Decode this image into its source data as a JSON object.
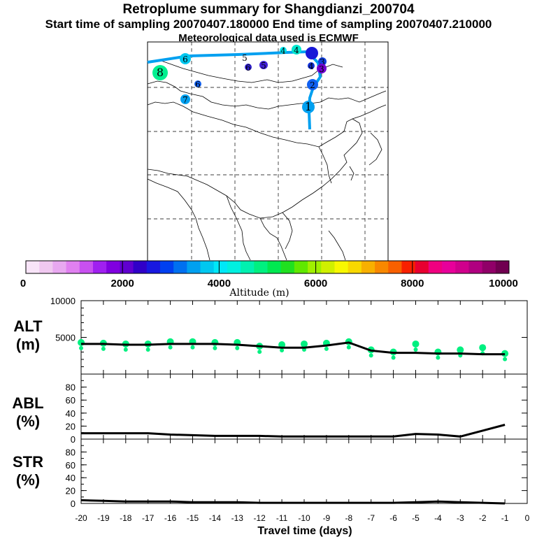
{
  "header": {
    "title": "Retroplume summary for Shangdianzi_200704",
    "sampling_line": "Start time of sampling 20070407.180000     End time of sampling 20070407.210000",
    "met_line": "Meteorological data used is ECMWF"
  },
  "colorbar": {
    "axis_label": "Altitude (m)",
    "tick_labels": [
      "0",
      "2000",
      "4000",
      "6000",
      "8000",
      "10000"
    ],
    "colors": [
      "#f8e4f8",
      "#f0c8f0",
      "#e8a8f0",
      "#e080f0",
      "#c850f0",
      "#a020f0",
      "#8000e0",
      "#6000d0",
      "#3000c8",
      "#1818e0",
      "#0040f0",
      "#0070f0",
      "#00a0f0",
      "#00c8f0",
      "#00e8f8",
      "#00f0e0",
      "#00f0b0",
      "#00f080",
      "#00e850",
      "#20e020",
      "#60e800",
      "#a0f000",
      "#d0f000",
      "#f8f800",
      "#f8d800",
      "#f8b000",
      "#f88800",
      "#f86000",
      "#f82000",
      "#e80030",
      "#f00080",
      "#e8009a",
      "#d0008c",
      "#b00080",
      "#900068",
      "#700050"
    ]
  },
  "map": {
    "trajectory_color": "#00a0f0",
    "trajectory_labels": [
      "1",
      "2",
      "3",
      "4",
      "5",
      "6",
      "7",
      "8"
    ],
    "clusters": [
      {
        "label": "8",
        "color": "#00f090"
      },
      {
        "label": "6",
        "color": "#00c8f0"
      },
      {
        "label": "5",
        "color": "#5020e0"
      },
      {
        "label": "4",
        "color": "#00e8f0"
      },
      {
        "label": "4",
        "color": "#00e8d0"
      },
      {
        "label": "3",
        "color": "#1040e0"
      },
      {
        "label": "2",
        "color": "#1060f0"
      },
      {
        "label": "1",
        "color": "#00a0f0"
      },
      {
        "label": "7",
        "color": "#00a0f0"
      },
      {
        "label": "6",
        "color": "#1060f0"
      },
      {
        "label": "4",
        "color": "#1030d8"
      },
      {
        "label": "6",
        "color": "#3020d0"
      },
      {
        "label": "5",
        "color": "#4020d8"
      },
      {
        "label": "3",
        "color": "#7000d0"
      }
    ]
  },
  "chart_data": [
    {
      "type": "line",
      "panel": "ALT",
      "ylabel_lines": [
        "ALT",
        "(m)"
      ],
      "ylim": [
        0,
        10000
      ],
      "yticks": [
        "5000",
        "10000"
      ],
      "xlim": [
        -20,
        0
      ],
      "x": [
        -20,
        -19,
        -18,
        -17,
        -16,
        -15,
        -14,
        -13,
        -12,
        -11,
        -10,
        -9,
        -8,
        -7,
        -6,
        -5,
        -4,
        -3,
        -2,
        -1
      ],
      "series": [
        {
          "name": "mean altitude",
          "color": "#000000",
          "values": [
            4100,
            4100,
            4000,
            4000,
            4100,
            4100,
            4100,
            4000,
            3800,
            3600,
            3600,
            3900,
            4300,
            3200,
            2900,
            2900,
            2800,
            2800,
            2700,
            2700
          ]
        },
        {
          "name": "particle cluster altitude",
          "color": "#00f080",
          "values": [
            4300,
            4200,
            4100,
            4100,
            4400,
            4400,
            4300,
            4300,
            3800,
            4000,
            4100,
            4200,
            4400,
            3300,
            3000,
            4100,
            3000,
            3300,
            3600,
            2800
          ]
        }
      ]
    },
    {
      "type": "line",
      "panel": "ABL",
      "ylabel_lines": [
        "ABL",
        "(%)"
      ],
      "ylim": [
        0,
        100
      ],
      "yticks": [
        "0",
        "20",
        "40",
        "60",
        "80"
      ],
      "xlim": [
        -20,
        0
      ],
      "x": [
        -20,
        -19,
        -18,
        -17,
        -16,
        -15,
        -14,
        -13,
        -12,
        -11,
        -10,
        -9,
        -8,
        -7,
        -6,
        -5,
        -4,
        -3,
        -2,
        -1
      ],
      "series": [
        {
          "name": "ABL fraction",
          "color": "#000000",
          "values": [
            9,
            9,
            9,
            9,
            7,
            6,
            5,
            5,
            5,
            4,
            4,
            4,
            4,
            4,
            4,
            8,
            7,
            4,
            13,
            22
          ]
        }
      ]
    },
    {
      "type": "line",
      "panel": "STR",
      "ylabel_lines": [
        "STR",
        "(%)"
      ],
      "ylim": [
        0,
        100
      ],
      "yticks": [
        "0",
        "20",
        "40",
        "60",
        "80"
      ],
      "xlim": [
        -20,
        0
      ],
      "xlabel": "Travel time (days)",
      "xtick_labels": [
        "-20",
        "-19",
        "-18",
        "-17",
        "-16",
        "-15",
        "-14",
        "-13",
        "-12",
        "-11",
        "-10",
        "-9",
        "-8",
        "-7",
        "-6",
        "-5",
        "-4",
        "-3",
        "-2",
        "-1",
        "0"
      ],
      "x": [
        -20,
        -19,
        -18,
        -17,
        -16,
        -15,
        -14,
        -13,
        -12,
        -11,
        -10,
        -9,
        -8,
        -7,
        -6,
        -5,
        -4,
        -3,
        -2,
        -1
      ],
      "series": [
        {
          "name": "STR fraction",
          "color": "#000000",
          "values": [
            5,
            4,
            3,
            3,
            3,
            2,
            2,
            2,
            1,
            1,
            1,
            1,
            1,
            1,
            1,
            2,
            3,
            2,
            1,
            0
          ]
        }
      ]
    }
  ]
}
